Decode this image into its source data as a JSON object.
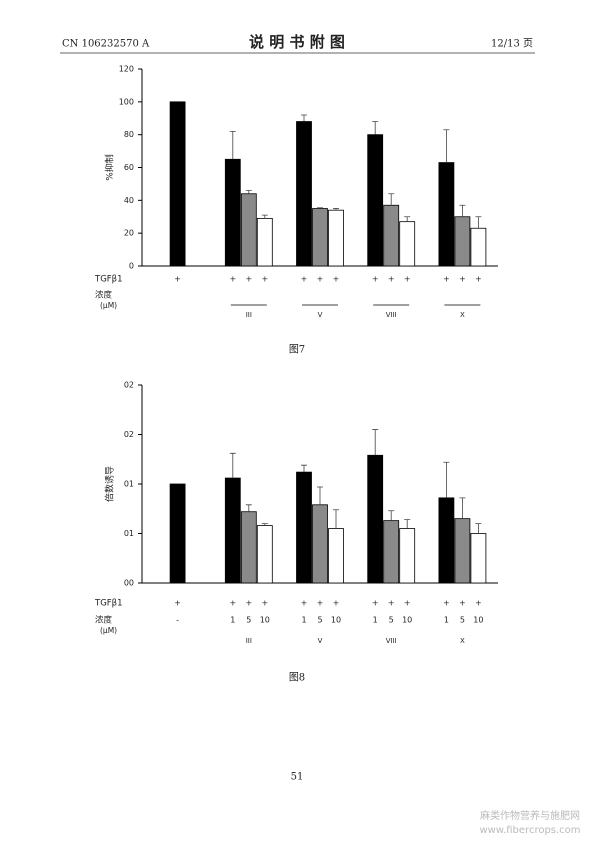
{
  "header": {
    "left": "CN 106232570 A",
    "title": "说 明 书 附 图",
    "right": "12/13 页"
  },
  "chart_data": [
    {
      "type": "bar",
      "caption": "图7",
      "y_label": "%抑制",
      "categories": [
        null,
        "III",
        "V",
        "VIII",
        "X"
      ],
      "series": [
        {
          "color": "#000000",
          "values": [
            100,
            65,
            88,
            80,
            63
          ],
          "errors": [
            null,
            17,
            4,
            8,
            20
          ]
        },
        {
          "color": "#8a8a8a",
          "values": [
            null,
            44,
            35,
            37,
            30
          ],
          "errors": [
            null,
            2,
            0.5,
            7,
            7
          ]
        },
        {
          "color": "#ffffff",
          "values": [
            null,
            29,
            34,
            27,
            23
          ],
          "errors": [
            null,
            2,
            1,
            3,
            7
          ]
        }
      ],
      "ylim": [
        0,
        120
      ],
      "yticks": [
        0,
        20,
        40,
        60,
        80,
        100,
        120
      ],
      "group_underline": true,
      "rows": [
        {
          "label": "TGFβ1",
          "cells": [
            [
              "+"
            ],
            [
              "+",
              "+",
              "+"
            ],
            [
              "+",
              "+",
              "+"
            ],
            [
              "+",
              "+",
              "+"
            ],
            [
              "+",
              "+",
              "+"
            ]
          ]
        },
        {
          "label": "浓度",
          "sublabel": "(μM)",
          "cells": [
            null,
            null,
            null,
            null,
            null
          ]
        }
      ]
    },
    {
      "type": "bar",
      "caption": "图8",
      "y_label": "倍数诱导",
      "categories": [
        null,
        "III",
        "V",
        "VIII",
        "X"
      ],
      "series": [
        {
          "color": "#000000",
          "values": [
            1.0,
            1.06,
            1.12,
            1.29,
            0.86
          ],
          "errors": [
            null,
            0.25,
            0.07,
            0.26,
            0.36
          ]
        },
        {
          "color": "#8a8a8a",
          "values": [
            null,
            0.72,
            0.79,
            0.63,
            0.65
          ],
          "errors": [
            null,
            0.07,
            0.18,
            0.1,
            0.21
          ]
        },
        {
          "color": "#ffffff",
          "values": [
            null,
            0.58,
            0.55,
            0.55,
            0.5
          ],
          "errors": [
            null,
            0.02,
            0.19,
            0.09,
            0.1
          ]
        }
      ],
      "ylim": [
        0,
        2
      ],
      "yticks": [
        {
          "value": 0,
          "label": "00"
        },
        {
          "value": 0.5,
          "label": "01"
        },
        {
          "value": 1,
          "label": "01"
        },
        {
          "value": 1.5,
          "label": "02"
        },
        {
          "value": 2,
          "label": "02"
        }
      ],
      "group_underline": false,
      "rows": [
        {
          "label": "TGFβ1",
          "cells": [
            [
              "+"
            ],
            [
              "+",
              "+",
              "+"
            ],
            [
              "+",
              "+",
              "+"
            ],
            [
              "+",
              "+",
              "+"
            ],
            [
              "+",
              "+",
              "+"
            ]
          ]
        },
        {
          "label": "浓度",
          "sublabel": "(μM)",
          "cells": [
            [
              "-"
            ],
            [
              "1",
              "5",
              "10"
            ],
            [
              "1",
              "5",
              "10"
            ],
            [
              "1",
              "5",
              "10"
            ],
            [
              "1",
              "5",
              "10"
            ]
          ]
        }
      ]
    }
  ],
  "footer": {
    "page_number": "51"
  },
  "watermark": {
    "line1": "麻类作物营养与施肥网",
    "line2": "www.fibercrops.com"
  }
}
